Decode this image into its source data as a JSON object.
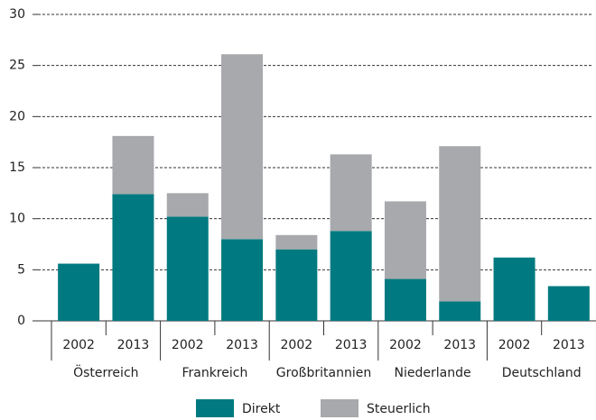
{
  "chart_data": {
    "type": "stacked_bar",
    "categories": [
      "2002",
      "2013",
      "2002",
      "2013",
      "2002",
      "2013",
      "2002",
      "2013",
      "2002",
      "2013"
    ],
    "groups": [
      "Österreich",
      "Frankreich",
      "Großbritannien",
      "Niederlande",
      "Deutschland"
    ],
    "series": [
      {
        "name": "Direkt",
        "color": "#007a80",
        "values": [
          5.6,
          12.4,
          10.2,
          8.0,
          7.0,
          8.8,
          4.1,
          1.9,
          6.2,
          3.4
        ]
      },
      {
        "name": "Steuerlich",
        "color": "#a7a9ac",
        "values": [
          0,
          5.7,
          2.3,
          18.1,
          1.4,
          7.5,
          7.6,
          15.2,
          0,
          0
        ]
      }
    ],
    "ylim": [
      0,
      30
    ],
    "yticks": [
      0,
      5,
      10,
      15,
      20,
      25,
      30
    ],
    "grid": true,
    "legend": "bottom"
  }
}
